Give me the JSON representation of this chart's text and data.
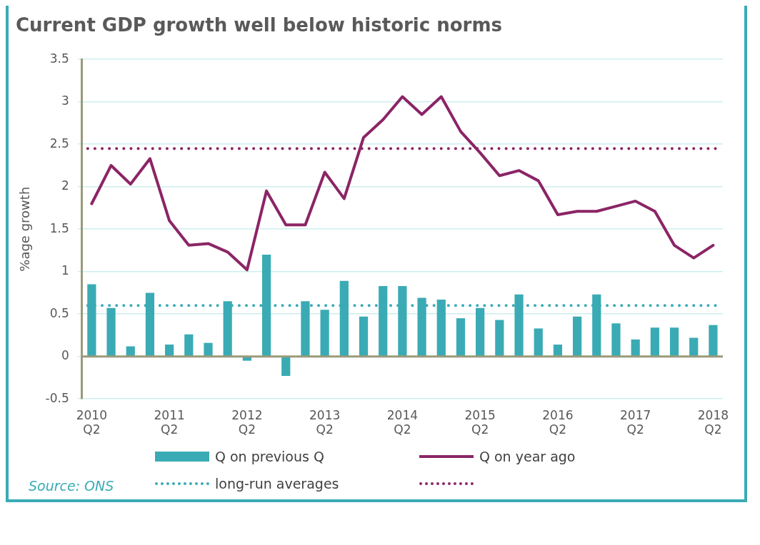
{
  "chart_data": {
    "type": "bar",
    "title": "Current GDP growth well below historic norms",
    "ylabel": "%age growth",
    "categories": [
      "2010 Q2",
      null,
      null,
      null,
      "2011 Q2",
      null,
      null,
      null,
      "2012 Q2",
      null,
      null,
      null,
      "2013 Q2",
      null,
      null,
      null,
      "2014 Q2",
      null,
      null,
      null,
      "2015 Q2",
      null,
      null,
      null,
      "2016 Q2",
      null,
      null,
      null,
      "2017 Q2",
      null,
      null,
      null,
      "2018 Q2"
    ],
    "series": [
      {
        "name": "Q on previous Q",
        "color": "#3aabb5",
        "values": [
          0.85,
          0.57,
          0.12,
          0.75,
          0.14,
          0.26,
          0.16,
          0.65,
          -0.05,
          1.2,
          -0.23,
          0.65,
          0.55,
          0.89,
          0.47,
          0.83,
          0.83,
          0.69,
          0.67,
          0.45,
          0.57,
          0.43,
          0.73,
          0.33,
          0.14,
          0.47,
          0.73,
          0.39,
          0.2,
          0.34,
          0.34,
          0.22,
          0.37
        ]
      },
      {
        "name": "Q on year ago",
        "type": "line",
        "color": "#8b2566",
        "values": [
          1.8,
          2.25,
          2.03,
          2.33,
          1.6,
          1.31,
          1.33,
          1.23,
          1.02,
          1.95,
          1.55,
          1.55,
          2.17,
          1.86,
          2.58,
          2.79,
          3.06,
          2.85,
          3.06,
          2.65,
          2.4,
          2.13,
          2.19,
          2.07,
          1.67,
          1.71,
          1.71,
          1.77,
          1.83,
          1.71,
          1.31,
          1.16,
          1.31
        ]
      }
    ],
    "ref_lines": [
      {
        "axis": "y",
        "value": 0.6,
        "label": "long-run averages",
        "color": "#3aabb5",
        "line_style": "dotted"
      },
      {
        "axis": "y",
        "value": 2.45,
        "label": null,
        "color": "#8b2566",
        "line_style": "dotted"
      }
    ],
    "ylim": [
      -0.5,
      3.5
    ],
    "yticks": [
      -0.5,
      0,
      0.5,
      1,
      1.5,
      2,
      2.5,
      3,
      3.5
    ],
    "grid": "y",
    "legend": "bottom",
    "marker": "none",
    "line_style": "solid",
    "annotations": [
      "Source: ONS"
    ]
  }
}
